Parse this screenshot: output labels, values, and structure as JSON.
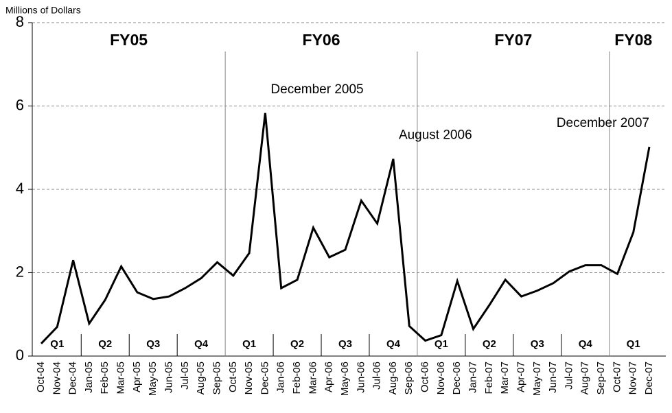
{
  "chart_data": {
    "type": "line",
    "y_axis_label": "Millions of Dollars",
    "categories": [
      "Oct-04",
      "Nov-04",
      "Dec-04",
      "Jan-05",
      "Feb-05",
      "Mar-05",
      "Apr-05",
      "May-05",
      "Jun-05",
      "Jul-05",
      "Aug-05",
      "Sep-05",
      "Oct-05",
      "Nov-05",
      "Dec-05",
      "Jan-06",
      "Feb-06",
      "Mar-06",
      "Apr-06",
      "May-06",
      "Jun-06",
      "Jul-06",
      "Aug-06",
      "Sep-06",
      "Oct-06",
      "Nov-06",
      "Dec-06",
      "Jan-07",
      "Feb-07",
      "Mar-07",
      "Apr-07",
      "May-07",
      "Jun-07",
      "Jul-07",
      "Aug-07",
      "Sep-07",
      "Oct-07",
      "Nov-07",
      "Dec-07"
    ],
    "values": [
      0.3,
      0.7,
      2.3,
      0.78,
      1.35,
      2.15,
      1.53,
      1.37,
      1.43,
      1.63,
      1.87,
      2.25,
      1.93,
      2.47,
      5.83,
      1.63,
      1.83,
      3.08,
      2.37,
      2.55,
      3.73,
      3.18,
      4.73,
      0.72,
      0.37,
      0.5,
      1.8,
      0.65,
      1.22,
      1.83,
      1.43,
      1.57,
      1.75,
      2.03,
      2.18,
      2.18,
      1.97,
      2.97,
      5.02
    ],
    "color": "#000000",
    "ylim": [
      0,
      8
    ],
    "yticks": [
      0,
      2,
      4,
      6,
      8
    ],
    "grid": true,
    "fiscal_years": [
      {
        "label": "FY05",
        "quarters": [
          "Q1",
          "Q2",
          "Q3",
          "Q4"
        ]
      },
      {
        "label": "FY06",
        "quarters": [
          "Q1",
          "Q2",
          "Q3",
          "Q4"
        ]
      },
      {
        "label": "FY07",
        "quarters": [
          "Q1",
          "Q2",
          "Q3",
          "Q4"
        ]
      },
      {
        "label": "FY08",
        "quarters": [
          "Q1"
        ]
      }
    ],
    "annotations": [
      {
        "text": "December 2005",
        "at": "Dec-05"
      },
      {
        "text": "August 2006",
        "at": "Aug-06"
      },
      {
        "text": "December 2007",
        "at": "Dec-07"
      }
    ]
  }
}
